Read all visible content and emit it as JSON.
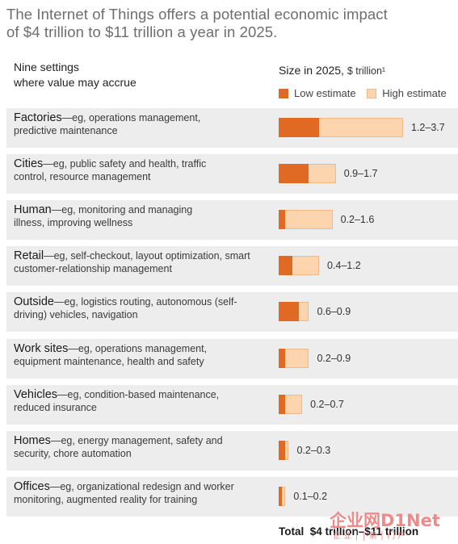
{
  "title": {
    "line1": "The Internet of Things offers a potential economic impact",
    "line2": "of $4 trillion to $11 trillion a year in 2025."
  },
  "columns": {
    "left_line1": "Nine settings",
    "left_line2": "where value may accrue",
    "right_label": "Size in 2025,",
    "right_unit": "$ trillion¹"
  },
  "legend": {
    "low": "Low estimate",
    "high": "High estimate"
  },
  "colors": {
    "low": "#e06a23",
    "high": "#fcd5ae",
    "row_bg": "#ededed"
  },
  "chart_data": {
    "type": "bar",
    "orientation": "horizontal",
    "title": "The Internet of Things offers a potential economic impact of $4 trillion to $11 trillion a year in 2025.",
    "xlabel": "Size in 2025, $ trillion¹",
    "categories": [
      "Factories",
      "Cities",
      "Human",
      "Retail",
      "Outside",
      "Work sites",
      "Vehicles",
      "Homes",
      "Offices"
    ],
    "descriptions": [
      "—eg, operations management, predictive maintenance",
      "—eg, public safety and health, traffic control, resource management",
      "—eg, monitoring and managing illness, improving wellness",
      "—eg, self-checkout, layout optimization, smart customer-relationship management",
      "—eg, logistics routing, autonomous (self-driving) vehicles, navigation",
      "—eg, operations management, equipment maintenance, health and safety",
      "—eg, condition-based maintenance, reduced insurance",
      "—eg, energy management, safety and security, chore automation",
      "—eg, organizational redesign and worker monitoring, augmented reality for training"
    ],
    "series": [
      {
        "name": "Low estimate",
        "values": [
          1.2,
          0.9,
          0.2,
          0.4,
          0.6,
          0.2,
          0.2,
          0.2,
          0.1
        ]
      },
      {
        "name": "High estimate",
        "values": [
          3.7,
          1.7,
          1.6,
          1.2,
          0.9,
          0.9,
          0.7,
          0.3,
          0.2
        ]
      }
    ],
    "range_labels": [
      "1.2–3.7",
      "0.9–1.7",
      "0.2–1.6",
      "0.4–1.2",
      "0.6–0.9",
      "0.2–0.9",
      "0.2–0.7",
      "0.2–0.3",
      "0.1–0.2"
    ],
    "xlim": [
      0,
      3.7
    ],
    "grid": false,
    "legend": "top"
  },
  "total": {
    "label": "Total",
    "value": "$4 trillion–$11 trillion"
  },
  "watermark": {
    "text": "企业网D1Net",
    "subtext": "企 业 │ │ 第 │ 门 户"
  }
}
